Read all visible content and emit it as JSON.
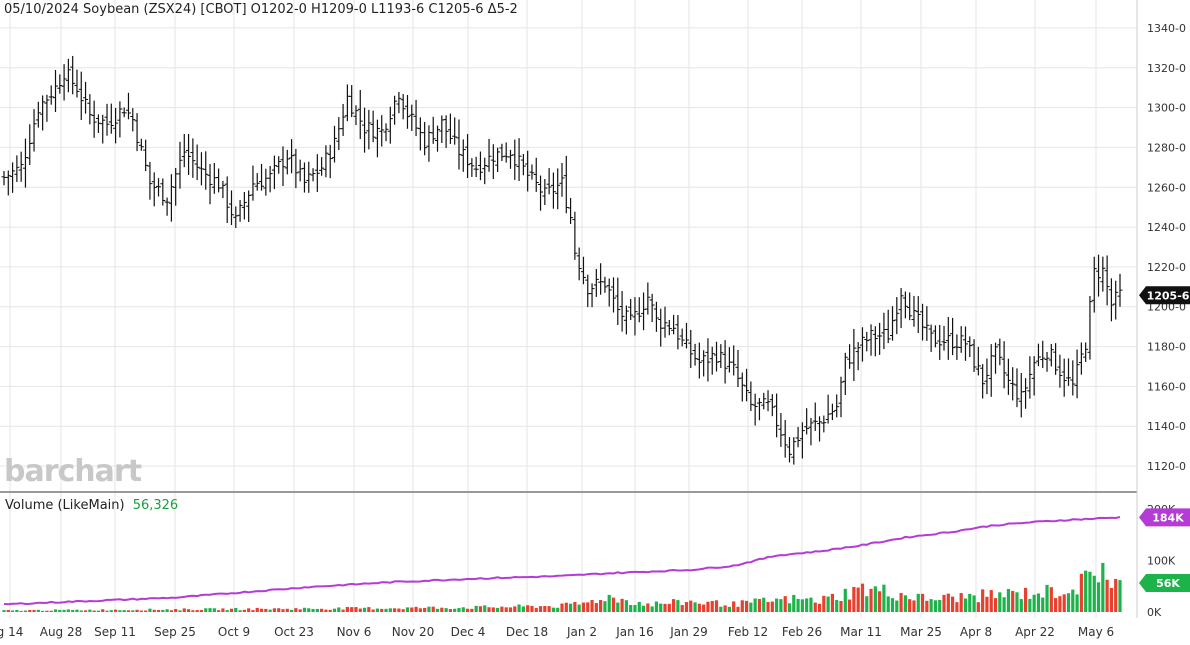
{
  "header": {
    "quote": "05/10/2024 Soybean (ZSX24) [CBOT] O1202-0 H1209-0 L1193-6 C1205-6 Δ5-2"
  },
  "logo_text": "barchart",
  "volume_header": {
    "label": "Volume  (LikeMain)",
    "value": "56,326"
  },
  "colors": {
    "price_bar": "#111111",
    "volume_up": "#1db34b",
    "volume_down": "#e8402e",
    "volume_neutral": "#3a66c9",
    "open_interest": "#b43bd6",
    "grid": "#e6e6e6"
  },
  "chart_data": [
    {
      "type": "ohlc",
      "symbol": "ZSX24",
      "x_tick_labels": [
        "g 14",
        "Aug 28",
        "Sep 11",
        "Sep 25",
        "Oct 9",
        "Oct 23",
        "Nov 6",
        "Nov 20",
        "Dec 4",
        "Dec 18",
        "Jan 2",
        "Jan 16",
        "Jan 29",
        "Feb 12",
        "Feb 26",
        "Mar 11",
        "Mar 25",
        "Apr 8",
        "Apr 22",
        "May 6"
      ],
      "y_tick_labels": [
        "1120-0",
        "1140-0",
        "1160-0",
        "1180-0",
        "1200-0",
        "1220-0",
        "1240-0",
        "1260-0",
        "1280-0",
        "1300-0",
        "1320-0",
        "1340-0"
      ],
      "y_ticks": [
        1120,
        1140,
        1160,
        1180,
        1200,
        1220,
        1240,
        1260,
        1280,
        1300,
        1320,
        1340
      ],
      "ylim": [
        1112,
        1348
      ],
      "last_price_label": "1205-6",
      "last_price": 1205.75,
      "close_points": [
        [
          0,
          1265
        ],
        [
          4,
          1270
        ],
        [
          8,
          1300
        ],
        [
          12,
          1310
        ],
        [
          14,
          1318
        ],
        [
          17,
          1310
        ],
        [
          20,
          1296
        ],
        [
          24,
          1292
        ],
        [
          28,
          1300
        ],
        [
          30,
          1294
        ],
        [
          34,
          1262
        ],
        [
          38,
          1255
        ],
        [
          42,
          1278
        ],
        [
          46,
          1268
        ],
        [
          50,
          1262
        ],
        [
          54,
          1243
        ],
        [
          58,
          1262
        ],
        [
          62,
          1265
        ],
        [
          66,
          1276
        ],
        [
          70,
          1262
        ],
        [
          74,
          1270
        ],
        [
          77,
          1282
        ],
        [
          80,
          1305
        ],
        [
          84,
          1290
        ],
        [
          88,
          1288
        ],
        [
          92,
          1308
        ],
        [
          94,
          1297
        ],
        [
          98,
          1283
        ],
        [
          102,
          1292
        ],
        [
          106,
          1278
        ],
        [
          110,
          1270
        ],
        [
          114,
          1276
        ],
        [
          118,
          1278
        ],
        [
          122,
          1266
        ],
        [
          126,
          1256
        ],
        [
          130,
          1262
        ],
        [
          132,
          1245
        ],
        [
          133,
          1228
        ],
        [
          136,
          1210
        ],
        [
          140,
          1212
        ],
        [
          143,
          1198
        ],
        [
          146,
          1192
        ],
        [
          150,
          1205
        ],
        [
          152,
          1193
        ],
        [
          156,
          1190
        ],
        [
          158,
          1182
        ],
        [
          162,
          1172
        ],
        [
          166,
          1176
        ],
        [
          170,
          1168
        ],
        [
          174,
          1150
        ],
        [
          178,
          1150
        ],
        [
          180,
          1142
        ],
        [
          183,
          1128
        ],
        [
          186,
          1138
        ],
        [
          190,
          1142
        ],
        [
          194,
          1150
        ],
        [
          196,
          1172
        ],
        [
          199,
          1180
        ],
        [
          202,
          1185
        ],
        [
          206,
          1186
        ],
        [
          209,
          1208
        ],
        [
          212,
          1195
        ],
        [
          216,
          1184
        ],
        [
          220,
          1183
        ],
        [
          224,
          1182
        ],
        [
          228,
          1163
        ],
        [
          231,
          1176
        ],
        [
          234,
          1162
        ],
        [
          237,
          1154
        ],
        [
          240,
          1172
        ],
        [
          243,
          1178
        ],
        [
          246,
          1168
        ],
        [
          249,
          1160
        ],
        [
          252,
          1182
        ],
        [
          254,
          1217
        ],
        [
          256,
          1218
        ],
        [
          258,
          1201
        ],
        [
          260,
          1206
        ]
      ],
      "n_bars": 261,
      "description_values": {
        "open": 1202.0,
        "high": 1209.0,
        "low": 1193.75,
        "close": 1205.75,
        "change": 5.25
      }
    },
    {
      "type": "bar",
      "title": "Volume  (LikeMain)",
      "last_volume_label": "56K",
      "last_volume": 56326,
      "last_oi_label": "184K",
      "last_oi": 184000,
      "y_tick_labels": [
        "0K",
        "100K",
        "200K"
      ],
      "y_ticks": [
        0,
        100000,
        200000
      ],
      "volume_points": [
        [
          0,
          3000
        ],
        [
          40,
          5000
        ],
        [
          80,
          7000
        ],
        [
          110,
          9000
        ],
        [
          130,
          12000
        ],
        [
          136,
          18000
        ],
        [
          140,
          30000
        ],
        [
          150,
          15000
        ],
        [
          160,
          20000
        ],
        [
          170,
          15000
        ],
        [
          176,
          20000
        ],
        [
          184,
          25000
        ],
        [
          190,
          22000
        ],
        [
          200,
          45000
        ],
        [
          205,
          40000
        ],
        [
          215,
          25000
        ],
        [
          225,
          30000
        ],
        [
          235,
          35000
        ],
        [
          245,
          40000
        ],
        [
          250,
          50000
        ],
        [
          254,
          70000
        ],
        [
          256,
          95000
        ],
        [
          258,
          55000
        ],
        [
          260,
          56326
        ]
      ],
      "open_interest_points": [
        [
          0,
          15000
        ],
        [
          40,
          28000
        ],
        [
          70,
          48000
        ],
        [
          90,
          58000
        ],
        [
          110,
          65000
        ],
        [
          130,
          70000
        ],
        [
          140,
          75000
        ],
        [
          160,
          82000
        ],
        [
          170,
          90000
        ],
        [
          180,
          110000
        ],
        [
          190,
          118000
        ],
        [
          200,
          130000
        ],
        [
          210,
          145000
        ],
        [
          220,
          155000
        ],
        [
          230,
          168000
        ],
        [
          240,
          175000
        ],
        [
          250,
          180000
        ],
        [
          260,
          184000
        ]
      ]
    }
  ]
}
